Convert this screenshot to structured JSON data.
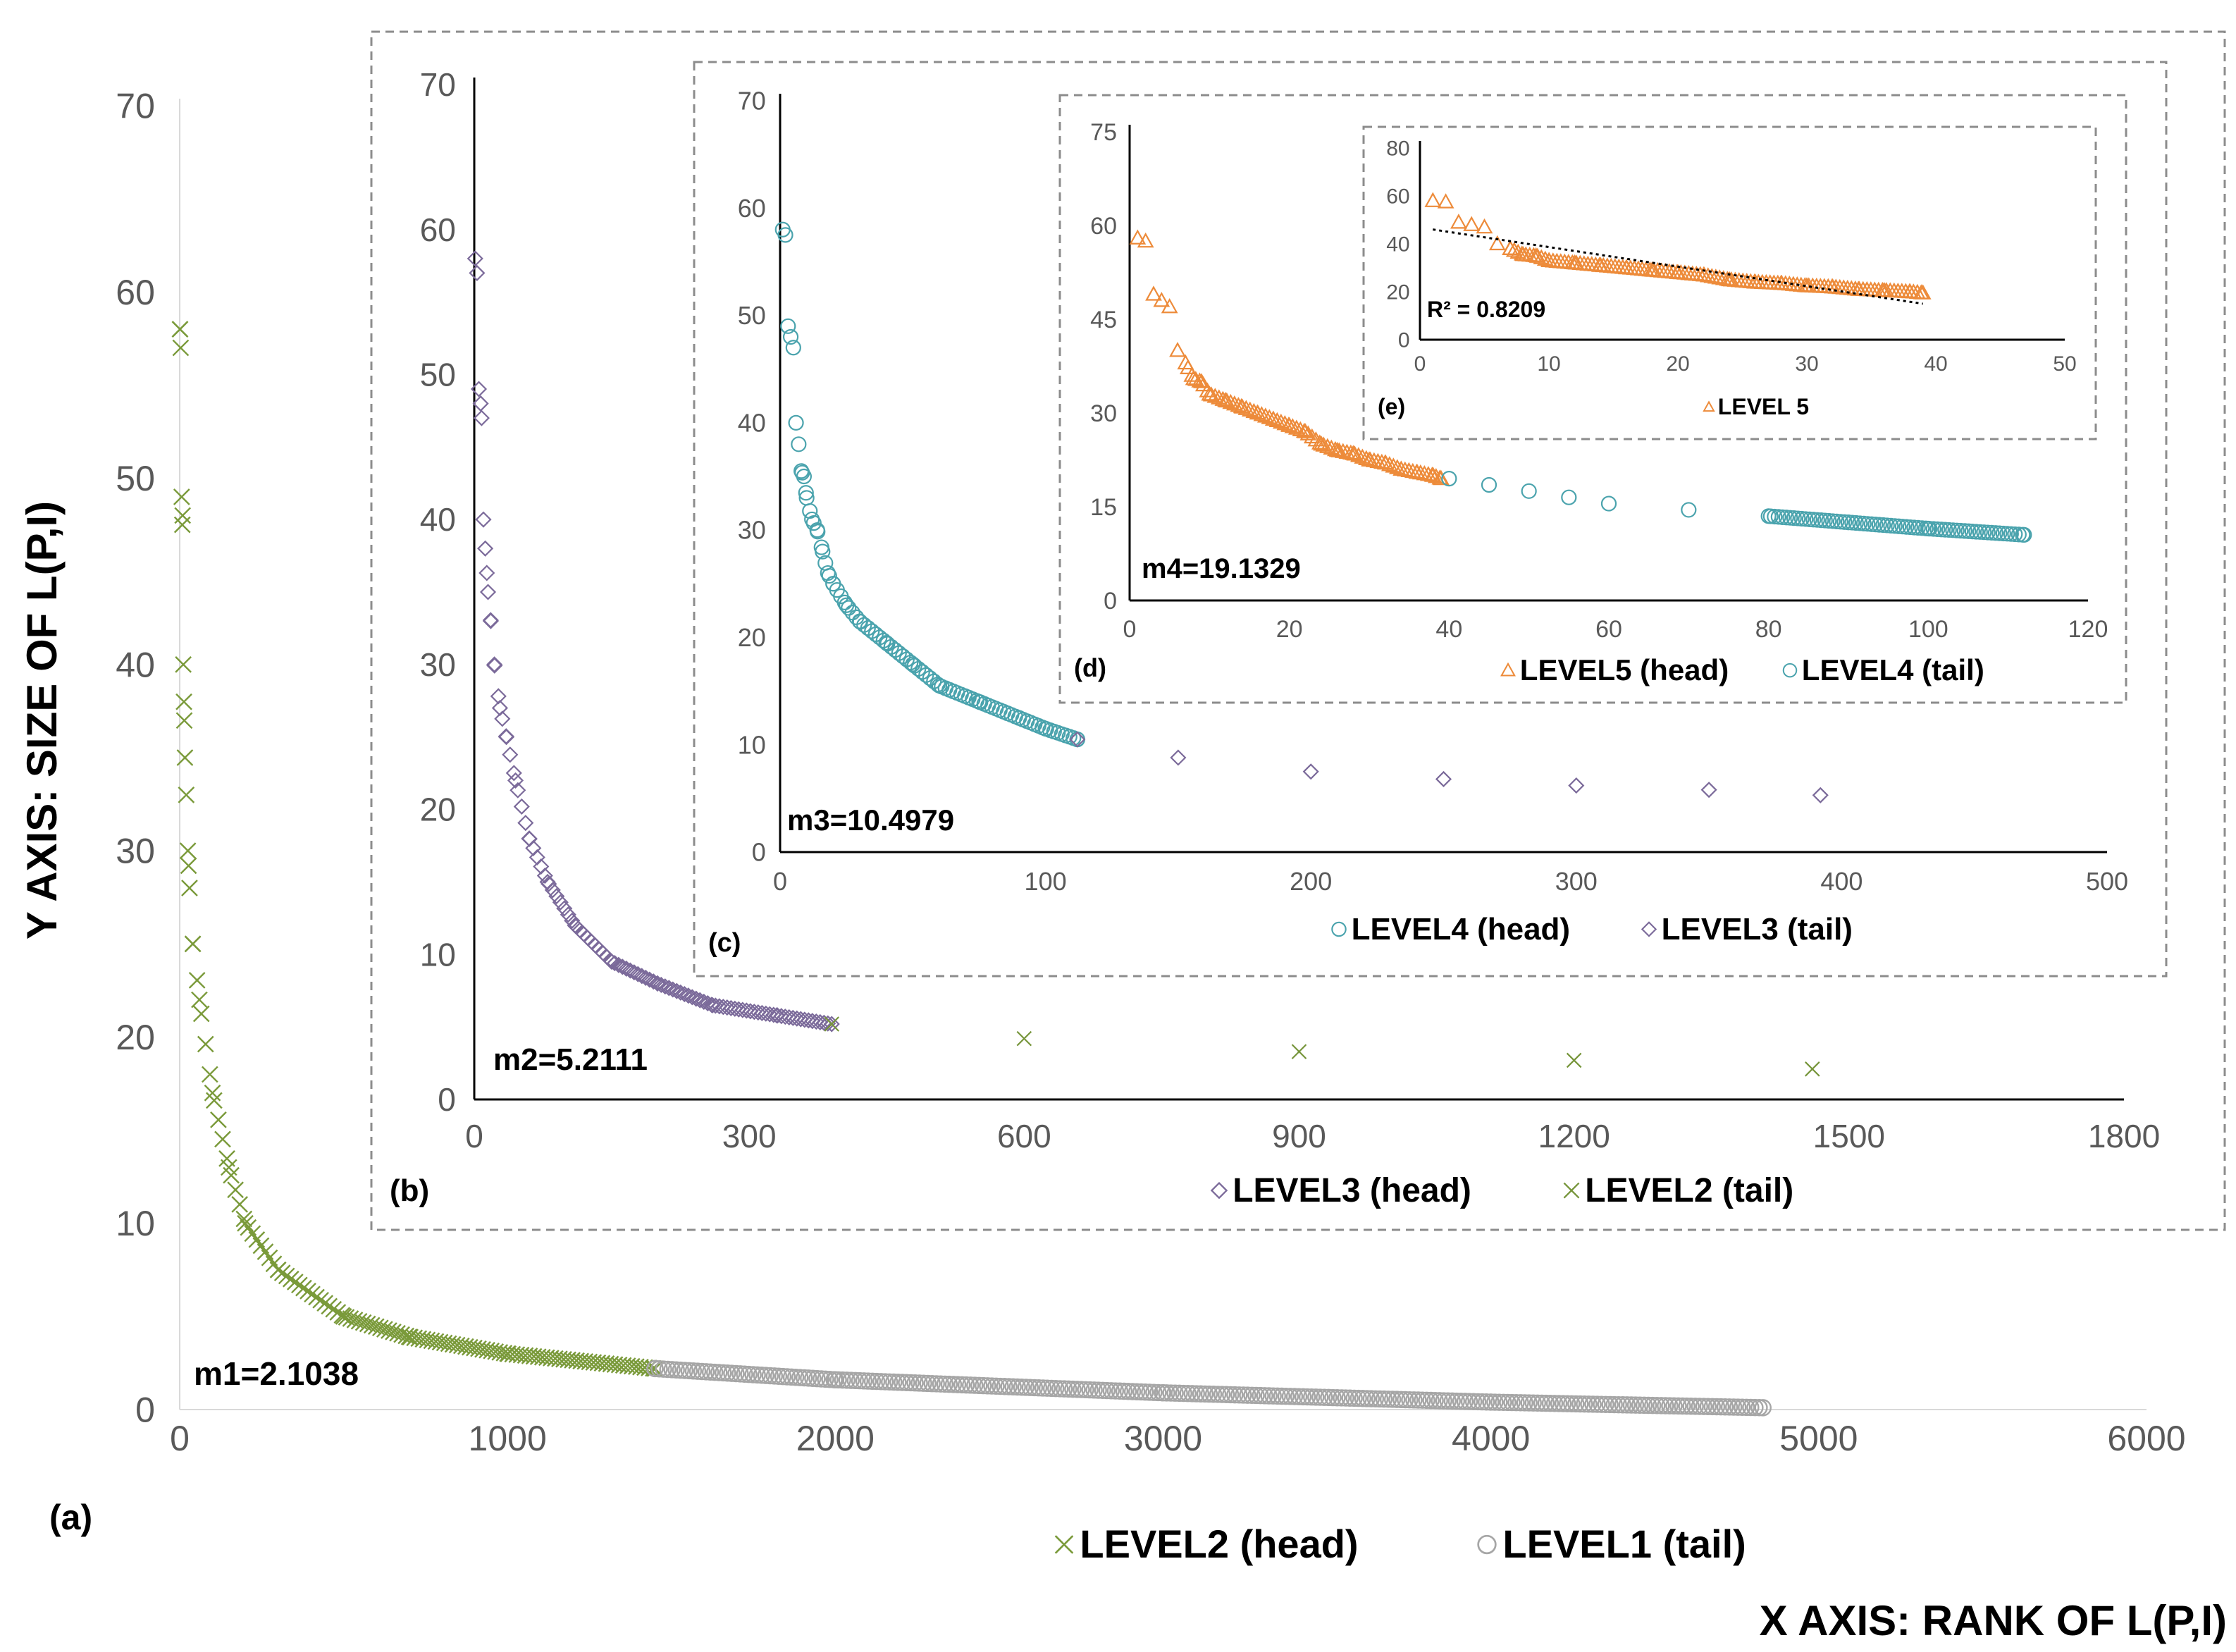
{
  "chart_data": [
    {
      "id": "a",
      "type": "scatter",
      "panel_label": "(a)",
      "ylabel": "Y AXIS:  SIZE OF L(P,I)",
      "xlabel": "X AXIS:  RANK OF L(P,I)",
      "xlim": [
        0,
        6000
      ],
      "xticks": [
        0,
        1000,
        2000,
        3000,
        4000,
        5000,
        6000
      ],
      "ylim": [
        0,
        70
      ],
      "yticks": [
        0,
        10,
        20,
        30,
        40,
        50,
        60,
        70
      ],
      "annotation": "m1=2.1038",
      "legend": [
        "LEVEL2 (head)",
        "LEVEL1 (tail)"
      ],
      "series": [
        {
          "name": "LEVEL2 (head)",
          "marker": "x",
          "color": "#7a9a3a",
          "x_range": [
            1,
            1450
          ],
          "points": [
            [
              1,
              58
            ],
            [
              3,
              57
            ],
            [
              6,
              49
            ],
            [
              8,
              47.5
            ],
            [
              9,
              48
            ],
            [
              11,
              40
            ],
            [
              13,
              38
            ],
            [
              16,
              35
            ],
            [
              20,
              33
            ],
            [
              25,
              30
            ],
            [
              30,
              28
            ],
            [
              40,
              25
            ],
            [
              60,
              22
            ],
            [
              100,
              17
            ],
            [
              150,
              13
            ],
            [
              200,
              10
            ],
            [
              300,
              7.5
            ],
            [
              500,
              5
            ],
            [
              700,
              3.9
            ],
            [
              1000,
              3
            ],
            [
              1450,
              2.2
            ]
          ]
        },
        {
          "name": "LEVEL1 (tail)",
          "marker": "o",
          "color": "#a6a6a6",
          "x_range": [
            1450,
            4830
          ],
          "points": [
            [
              1450,
              2.2
            ],
            [
              2000,
              1.6
            ],
            [
              3000,
              0.9
            ],
            [
              4000,
              0.4
            ],
            [
              4830,
              0.1
            ]
          ]
        }
      ],
      "colors": {
        "head": "#7a9a3a",
        "tail": "#a6a6a6"
      }
    },
    {
      "id": "b",
      "type": "scatter",
      "panel_label": "(b)",
      "xlim": [
        0,
        1800
      ],
      "xticks": [
        0,
        300,
        600,
        900,
        1200,
        1500,
        1800
      ],
      "ylim": [
        0,
        70
      ],
      "yticks": [
        0,
        10,
        20,
        30,
        40,
        50,
        60,
        70
      ],
      "annotation": "m2=5.2111",
      "legend": [
        "LEVEL3 (head)",
        "LEVEL2 (tail)"
      ],
      "series": [
        {
          "name": "LEVEL3 (head)",
          "marker": "diamond",
          "color": "#7b6a9a",
          "points": [
            [
              1,
              58
            ],
            [
              3,
              57
            ],
            [
              5,
              49
            ],
            [
              7,
              48
            ],
            [
              8,
              47
            ],
            [
              10,
              40
            ],
            [
              12,
              38
            ],
            [
              15,
              35
            ],
            [
              18,
              33
            ],
            [
              22,
              30
            ],
            [
              28,
              27
            ],
            [
              35,
              25
            ],
            [
              45,
              22
            ],
            [
              60,
              18
            ],
            [
              80,
              15
            ],
            [
              110,
              12
            ],
            [
              150,
              9.5
            ],
            [
              200,
              8
            ],
            [
              260,
              6.5
            ],
            [
              330,
              5.8
            ],
            [
              390,
              5.2
            ]
          ]
        },
        {
          "name": "LEVEL2 (tail)",
          "marker": "x",
          "color": "#76953a",
          "points": [
            [
              390,
              5.2
            ],
            [
              600,
              4.2
            ],
            [
              900,
              3.3
            ],
            [
              1200,
              2.7
            ],
            [
              1460,
              2.1
            ]
          ]
        }
      ]
    },
    {
      "id": "c",
      "type": "scatter",
      "panel_label": "(c)",
      "xlim": [
        0,
        500
      ],
      "xticks": [
        0,
        100,
        200,
        300,
        400,
        500
      ],
      "ylim": [
        0,
        70
      ],
      "yticks": [
        0,
        10,
        20,
        30,
        40,
        50,
        60,
        70
      ],
      "annotation": "m3=10.4979",
      "legend": [
        "LEVEL4 (head)",
        "LEVEL3 (tail)"
      ],
      "series": [
        {
          "name": "LEVEL4 (head)",
          "marker": "o",
          "color": "#4aa3ad",
          "points": [
            [
              1,
              58
            ],
            [
              2,
              57.5
            ],
            [
              3,
              49
            ],
            [
              4,
              48
            ],
            [
              5,
              47
            ],
            [
              6,
              40
            ],
            [
              7,
              38
            ],
            [
              8,
              35.5
            ],
            [
              9,
              35
            ],
            [
              10,
              33
            ],
            [
              12,
              31
            ],
            [
              14,
              30
            ],
            [
              16,
              28
            ],
            [
              18,
              26
            ],
            [
              20,
              25
            ],
            [
              25,
              23
            ],
            [
              30,
              21.5
            ],
            [
              40,
              19.5
            ],
            [
              50,
              17.5
            ],
            [
              60,
              15.5
            ],
            [
              75,
              14
            ],
            [
              90,
              12.5
            ],
            [
              100,
              11.5
            ],
            [
              112,
              10.5
            ]
          ]
        },
        {
          "name": "LEVEL3 (tail)",
          "marker": "diamond",
          "color": "#7b6a9a",
          "points": [
            [
              112,
              10.5
            ],
            [
              150,
              8.8
            ],
            [
              200,
              7.5
            ],
            [
              250,
              6.8
            ],
            [
              300,
              6.2
            ],
            [
              350,
              5.8
            ],
            [
              392,
              5.3
            ]
          ]
        }
      ]
    },
    {
      "id": "d",
      "type": "scatter",
      "panel_label": "(d)",
      "xlim": [
        0,
        120
      ],
      "xticks": [
        0,
        20,
        40,
        60,
        80,
        100,
        120
      ],
      "ylim": [
        0,
        75
      ],
      "yticks": [
        0,
        15,
        30,
        45,
        60,
        75
      ],
      "annotation": "m4=19.1329",
      "legend": [
        "LEVEL5 (head)",
        "LEVEL4 (tail)"
      ],
      "series": [
        {
          "name": "LEVEL5 (head)",
          "marker": "triangle",
          "color": "#ed8b3a",
          "points": [
            [
              1,
              58
            ],
            [
              2,
              57.5
            ],
            [
              3,
              49
            ],
            [
              4,
              48
            ],
            [
              5,
              47
            ],
            [
              6,
              40
            ],
            [
              7,
              38
            ],
            [
              8,
              35.5
            ],
            [
              9,
              35
            ],
            [
              10,
              33
            ],
            [
              12,
              32
            ],
            [
              14,
              31
            ],
            [
              16,
              30
            ],
            [
              18,
              29
            ],
            [
              20,
              28
            ],
            [
              22,
              27
            ],
            [
              24,
              25
            ],
            [
              26,
              24
            ],
            [
              28,
              23.5
            ],
            [
              30,
              22.5
            ],
            [
              32,
              22
            ],
            [
              34,
              21
            ],
            [
              36,
              20.5
            ],
            [
              38,
              20
            ],
            [
              39,
              19.5
            ]
          ]
        },
        {
          "name": "LEVEL4 (tail)",
          "marker": "o",
          "color": "#4aa3ad",
          "points": [
            [
              40,
              19.5
            ],
            [
              45,
              18.5
            ],
            [
              50,
              17.5
            ],
            [
              55,
              16.5
            ],
            [
              60,
              15.5
            ],
            [
              70,
              14.5
            ],
            [
              80,
              13.5
            ],
            [
              90,
              12.5
            ],
            [
              100,
              11.5
            ],
            [
              112,
              10.5
            ]
          ]
        }
      ]
    },
    {
      "id": "e",
      "type": "scatter",
      "panel_label": "(e)",
      "xlim": [
        0,
        50
      ],
      "xticks": [
        0,
        10,
        20,
        30,
        40,
        50
      ],
      "ylim": [
        0,
        80
      ],
      "yticks": [
        0,
        20,
        40,
        60,
        80
      ],
      "annotation": "R² = 0.8209",
      "legend": [
        "LEVEL 5"
      ],
      "series": [
        {
          "name": "LEVEL 5",
          "marker": "triangle",
          "color": "#ed8b3a",
          "points": [
            [
              1,
              58
            ],
            [
              2,
              57.5
            ],
            [
              3,
              49
            ],
            [
              4,
              48
            ],
            [
              5,
              47
            ],
            [
              6,
              40
            ],
            [
              7,
              38
            ],
            [
              8,
              35.5
            ],
            [
              9,
              35
            ],
            [
              10,
              33
            ],
            [
              12,
              32
            ],
            [
              14,
              31
            ],
            [
              16,
              30
            ],
            [
              18,
              29
            ],
            [
              20,
              28
            ],
            [
              22,
              27
            ],
            [
              24,
              25
            ],
            [
              26,
              24
            ],
            [
              28,
              23.5
            ],
            [
              30,
              22.5
            ],
            [
              32,
              22
            ],
            [
              34,
              21
            ],
            [
              36,
              20.5
            ],
            [
              38,
              20
            ],
            [
              39,
              19.5
            ]
          ]
        }
      ],
      "trendline": {
        "x": [
          1,
          39
        ],
        "y": [
          46,
          15
        ],
        "style": "dotted"
      }
    }
  ]
}
